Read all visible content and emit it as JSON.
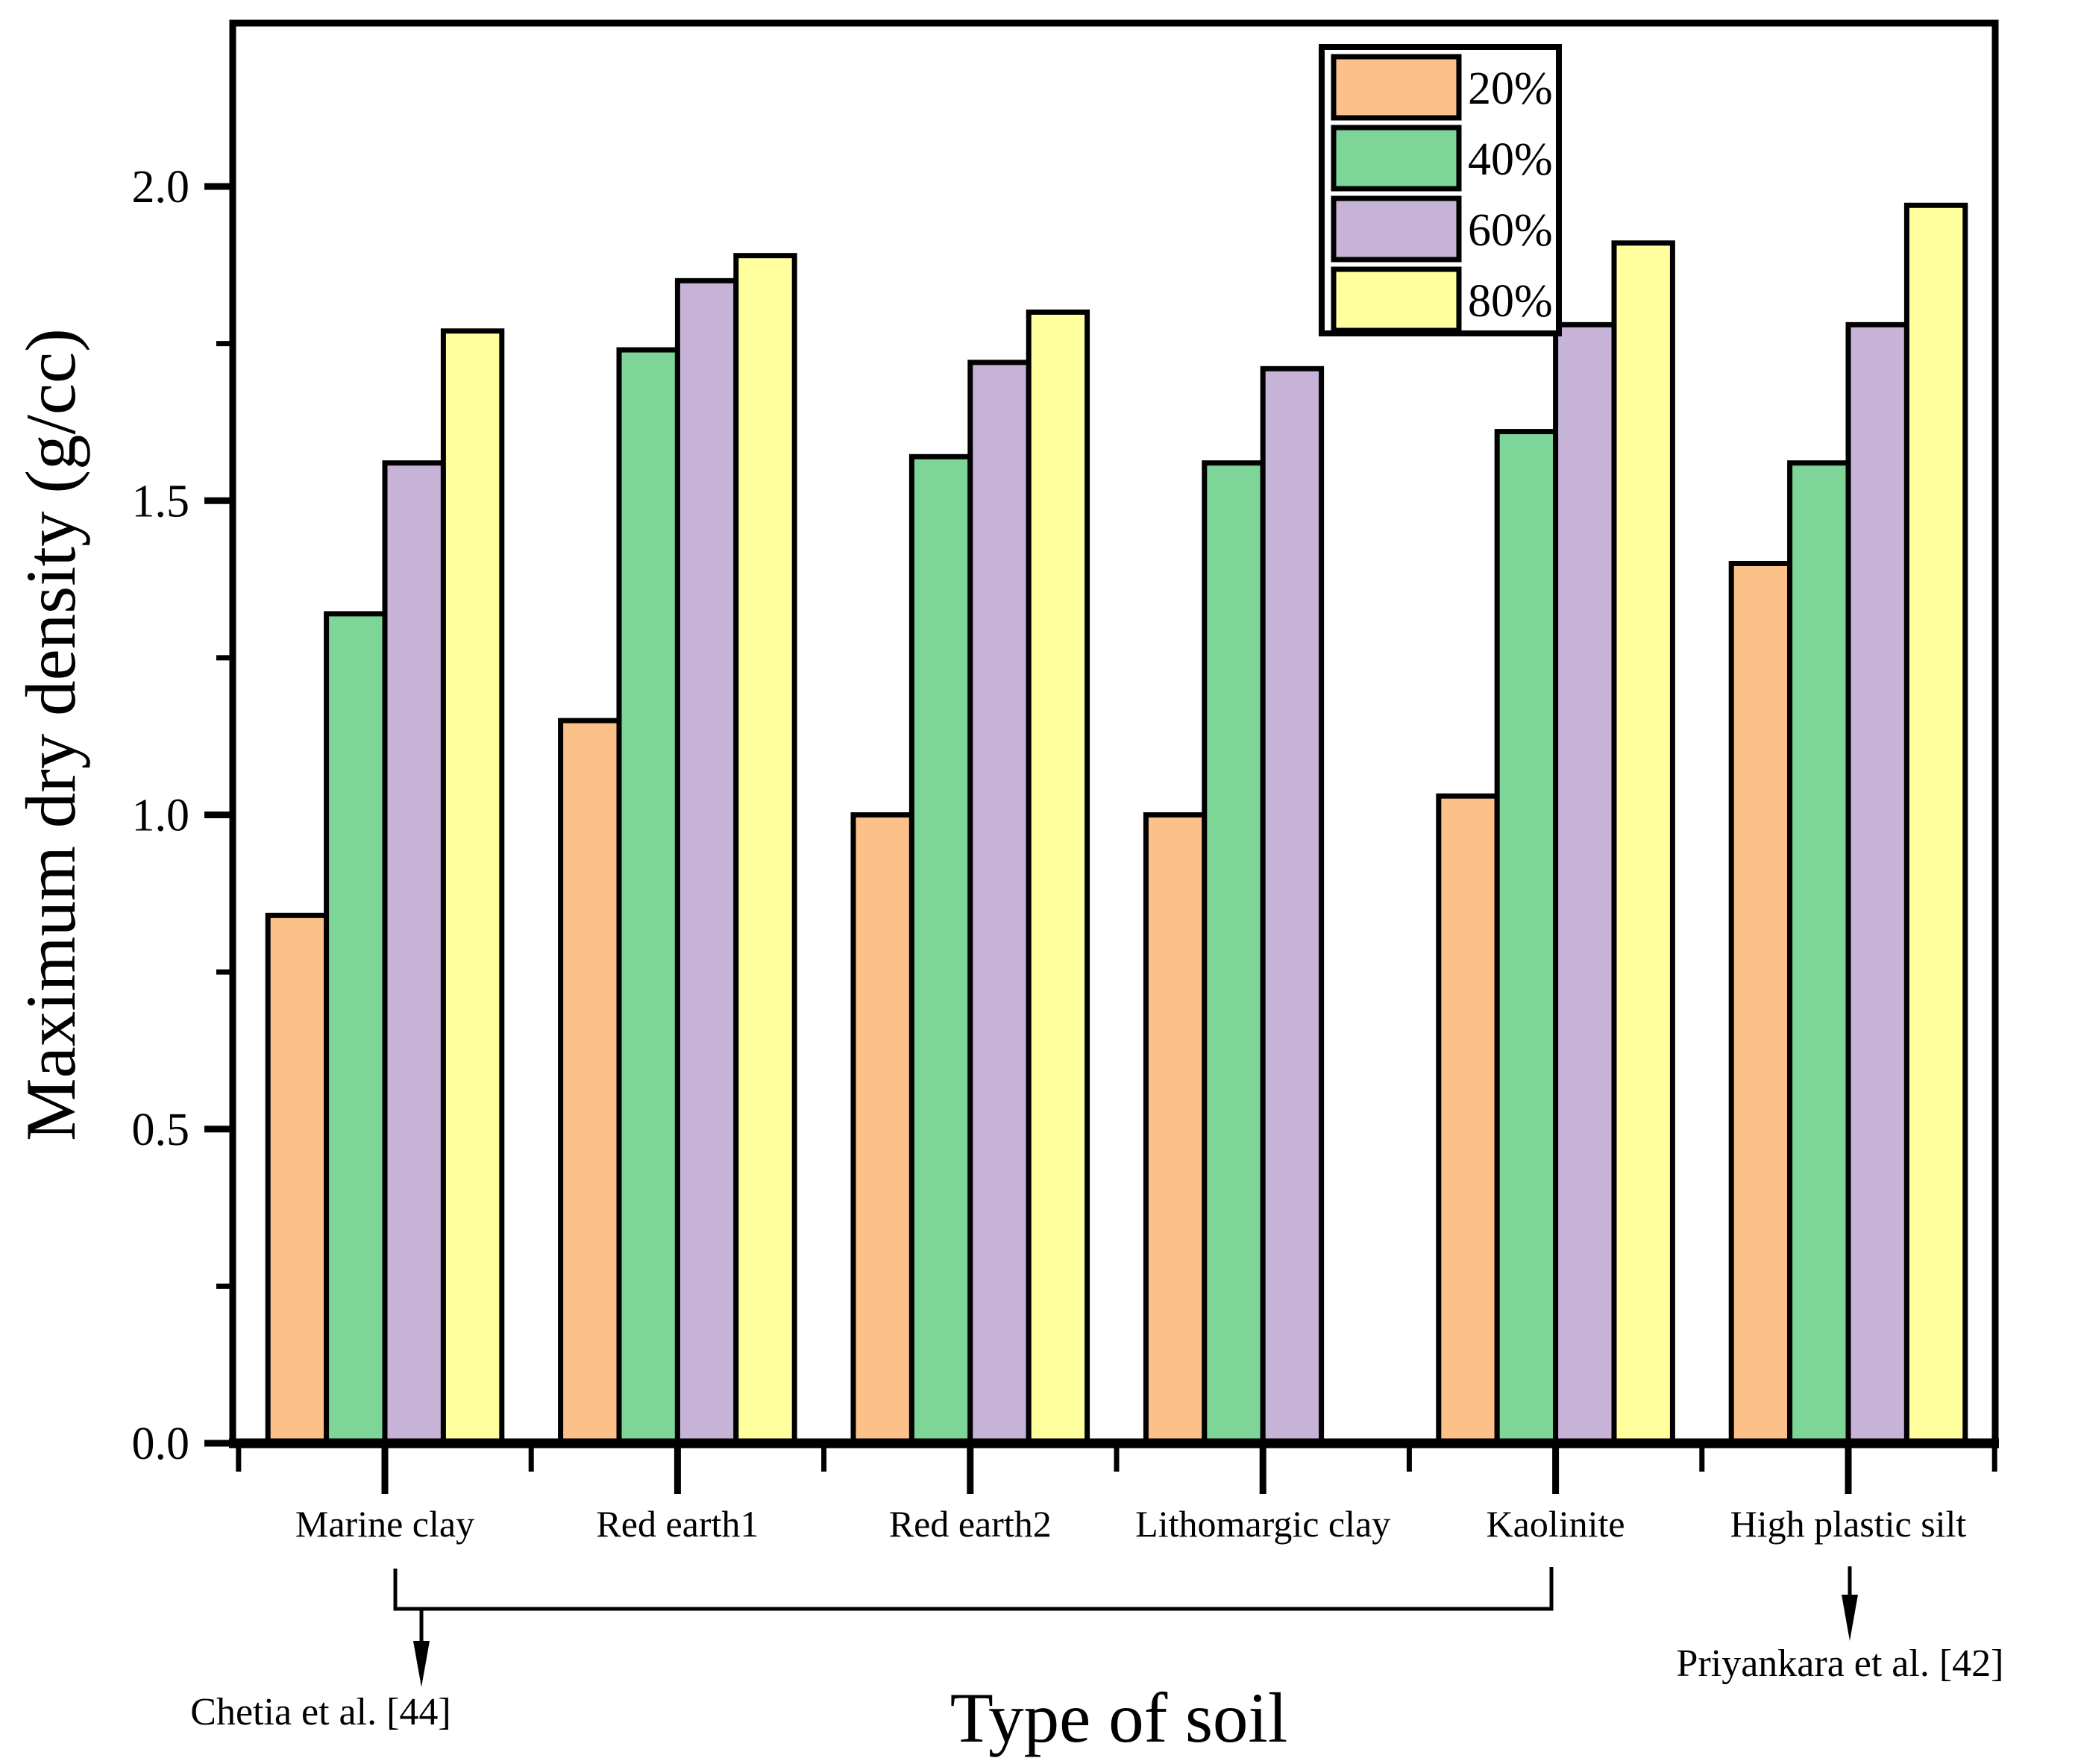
{
  "chart_data": {
    "type": "bar",
    "title": "",
    "xlabel": "Type of soil",
    "ylabel": "Maximum dry density (g/cc)",
    "categories": [
      "Marine clay",
      "Red earth1",
      "Red earth2",
      "Lithomargic clay",
      "Kaolinite",
      "High plastic silt"
    ],
    "series": [
      {
        "name": "20%",
        "color": "#FBC189",
        "values": [
          0.84,
          1.15,
          1.0,
          1.0,
          1.03,
          1.4
        ]
      },
      {
        "name": "40%",
        "color": "#7DD598",
        "values": [
          1.32,
          1.74,
          1.57,
          1.56,
          1.61,
          1.56
        ]
      },
      {
        "name": "60%",
        "color": "#C8B3D8",
        "values": [
          1.56,
          1.85,
          1.72,
          1.71,
          1.78,
          1.78
        ]
      },
      {
        "name": "80%",
        "color": "#FFFF9D",
        "values": [
          1.77,
          1.89,
          1.8,
          null,
          1.91,
          1.97
        ]
      }
    ],
    "ylim": [
      0,
      2.26
    ],
    "yticks": [
      0.0,
      0.5,
      1.0,
      1.5,
      2.0
    ],
    "ytick_labels": [
      "0.0",
      "0.5",
      "1.0",
      "1.5",
      "2.0"
    ],
    "minor_ytick_step": 0.25,
    "grid": false,
    "legend_position": "top-right",
    "bar_edge_color": "#000000",
    "annotations": [
      {
        "text": "Chetia et al. [44]",
        "applies_to": [
          "Marine clay",
          "Red earth1",
          "Red earth2",
          "Lithomargic clay",
          "Kaolinite"
        ]
      },
      {
        "text": "Priyankara et al. [42]",
        "applies_to": [
          "High plastic silt"
        ]
      }
    ]
  }
}
